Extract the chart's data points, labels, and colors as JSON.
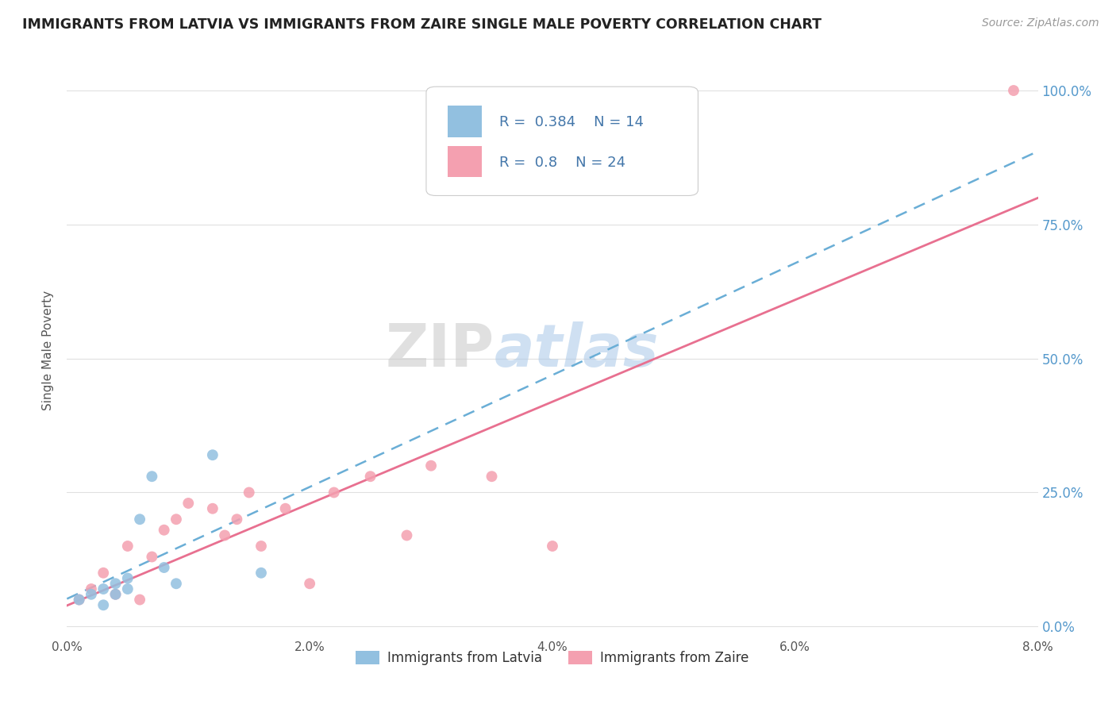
{
  "title": "IMMIGRANTS FROM LATVIA VS IMMIGRANTS FROM ZAIRE SINGLE MALE POVERTY CORRELATION CHART",
  "source": "Source: ZipAtlas.com",
  "ylabel": "Single Male Poverty",
  "ytick_labels": [
    "0.0%",
    "25.0%",
    "50.0%",
    "75.0%",
    "100.0%"
  ],
  "ytick_values": [
    0,
    0.25,
    0.5,
    0.75,
    1.0
  ],
  "xtick_values": [
    0,
    0.02,
    0.04,
    0.06,
    0.08
  ],
  "xtick_labels": [
    "0.0%",
    "2.0%",
    "4.0%",
    "6.0%",
    "8.0%"
  ],
  "xlim": [
    0,
    0.08
  ],
  "ylim": [
    -0.02,
    1.05
  ],
  "latvia_R": 0.384,
  "latvia_N": 14,
  "zaire_R": 0.8,
  "zaire_N": 24,
  "latvia_color": "#92c0e0",
  "zaire_color": "#f4a0b0",
  "latvia_line_color": "#6aaed6",
  "zaire_line_color": "#e87090",
  "legend_label_latvia": "Immigrants from Latvia",
  "legend_label_zaire": "Immigrants from Zaire",
  "watermark_zip": "ZIP",
  "watermark_atlas": "atlas",
  "background_color": "#ffffff",
  "grid_color": "#e0e0e0",
  "title_color": "#222222",
  "axis_label_color": "#555555",
  "right_tick_color": "#5599cc",
  "latvia_x": [
    0.001,
    0.002,
    0.003,
    0.003,
    0.004,
    0.004,
    0.005,
    0.005,
    0.006,
    0.007,
    0.008,
    0.009,
    0.012,
    0.016
  ],
  "latvia_y": [
    0.05,
    0.06,
    0.04,
    0.07,
    0.06,
    0.08,
    0.07,
    0.09,
    0.2,
    0.28,
    0.11,
    0.08,
    0.32,
    0.1
  ],
  "zaire_x": [
    0.001,
    0.002,
    0.003,
    0.004,
    0.005,
    0.006,
    0.007,
    0.008,
    0.009,
    0.01,
    0.012,
    0.013,
    0.014,
    0.015,
    0.016,
    0.018,
    0.02,
    0.022,
    0.025,
    0.028,
    0.03,
    0.035,
    0.04,
    0.078
  ],
  "zaire_y": [
    0.05,
    0.07,
    0.1,
    0.06,
    0.15,
    0.05,
    0.13,
    0.18,
    0.2,
    0.23,
    0.22,
    0.17,
    0.2,
    0.25,
    0.15,
    0.22,
    0.08,
    0.25,
    0.28,
    0.17,
    0.3,
    0.28,
    0.15,
    1.0
  ]
}
